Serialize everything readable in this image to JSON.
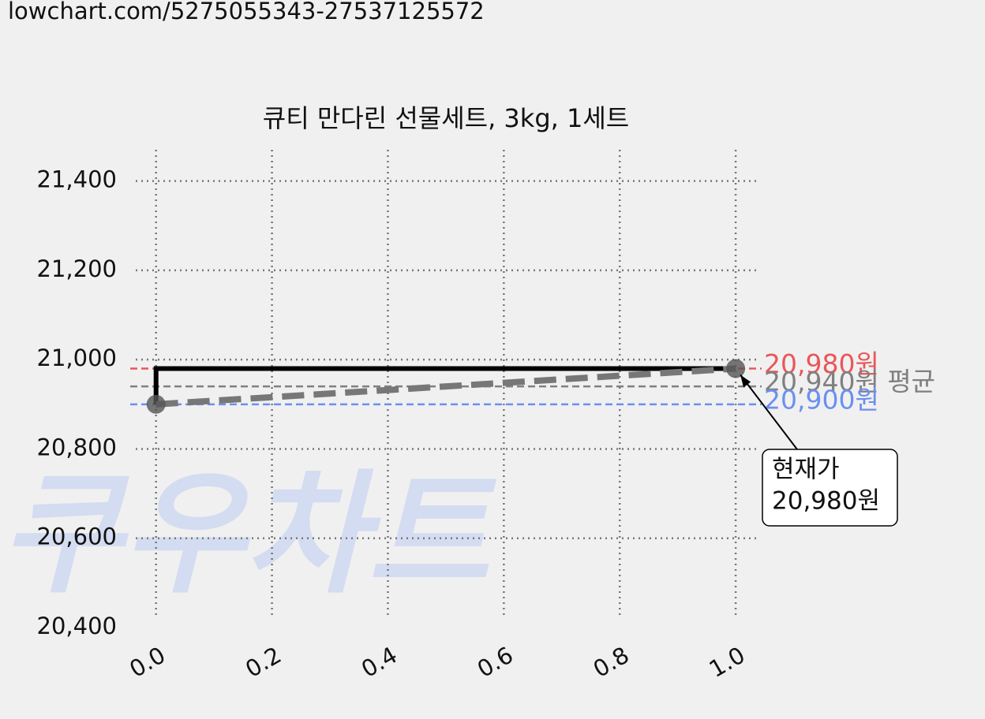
{
  "url": "lowchart.com/5275055343-27537125572",
  "chart_data": {
    "type": "line",
    "title": "큐티 만다린 선물세트, 3kg, 1세트",
    "watermark": "쿠우차트",
    "x": [
      0,
      1
    ],
    "series": [
      {
        "color": "#000000",
        "style": "step",
        "values": [
          20900,
          20980
        ]
      },
      {
        "color": "#777777",
        "style": "dashed",
        "values": [
          20900,
          20980
        ]
      }
    ],
    "ref_lines": [
      {
        "value": 20980,
        "label": "20,980원",
        "color": "#e8575a"
      },
      {
        "value": 20940,
        "label": "20,940원 평균",
        "color": "#808080"
      },
      {
        "value": 20900,
        "label": "20,900원",
        "color": "#6c8ff0"
      }
    ],
    "annotation": {
      "text": [
        "현재가",
        "20,980원"
      ]
    },
    "xlim": [
      -0.035,
      1.038
    ],
    "ylim": [
      20400,
      21470
    ],
    "xticks": [
      {
        "value": 0,
        "label": "0.0"
      },
      0.2,
      0.4,
      0.6,
      0.8,
      {
        "value": 1,
        "label": "1.0"
      }
    ],
    "yticks": [
      {
        "value": 20400,
        "label": "20,400"
      },
      {
        "value": 20600,
        "label": "20,600"
      },
      {
        "value": 20800,
        "label": "20,800"
      },
      {
        "value": 21000,
        "label": "21,000"
      },
      {
        "value": 21200,
        "label": "21,200"
      },
      {
        "value": 21400,
        "label": "21,400"
      }
    ],
    "grid": true
  }
}
